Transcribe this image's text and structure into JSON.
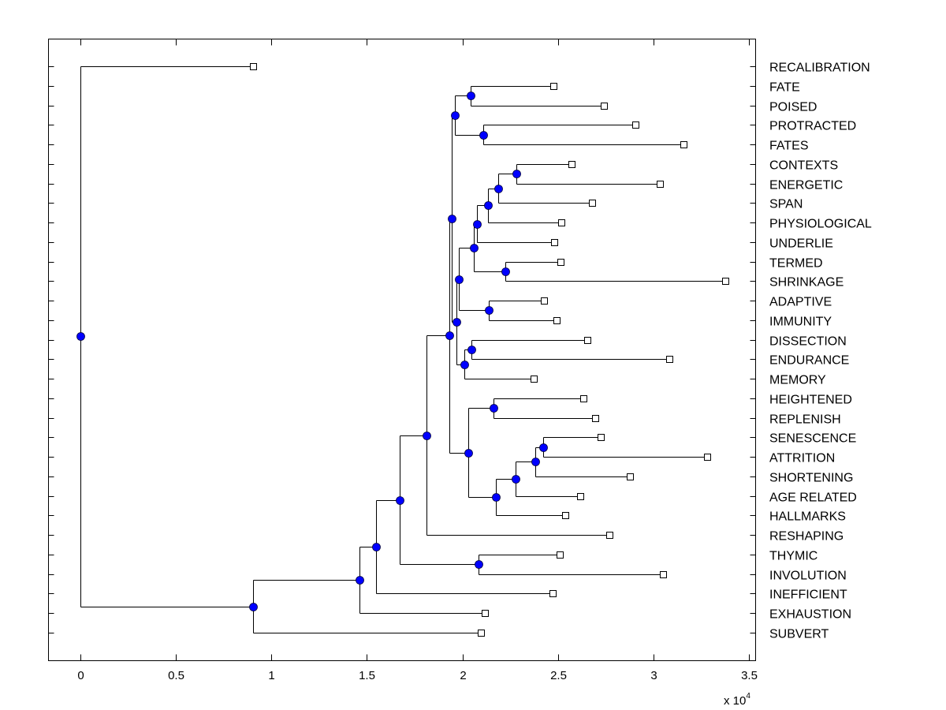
{
  "chart_data": {
    "type": "dendrogram",
    "title": "",
    "xlabel": "",
    "x_multiplier": "x 10",
    "x_multiplier_exponent": "4",
    "xlim": [
      -0.17,
      3.55
    ],
    "xticks": [
      0,
      0.5,
      1,
      1.5,
      2,
      2.5,
      3,
      3.5
    ],
    "xtick_labels": [
      "0",
      "0.5",
      "1",
      "1.5",
      "2",
      "2.5",
      "3",
      "3.5"
    ],
    "orientation": "leaves-right",
    "colors": {
      "node": "#0000ff",
      "line": "#000000",
      "leaf_marker": "#ffffff"
    },
    "leaves": [
      "RECALIBRATION",
      "FATE",
      "POISED",
      "PROTRACTED",
      "FATES",
      "CONTEXTS",
      "ENERGETIC",
      "SPAN",
      "PHYSIOLOGICAL",
      "UNDERLIE",
      "TERMED",
      "SHRINKAGE",
      "ADAPTIVE",
      "IMMUNITY",
      "DISSECTION",
      "ENDURANCE",
      "MEMORY",
      "HEIGHTENED",
      "REPLENISH",
      "SENESCENCE",
      "ATTRITION",
      "SHORTENING",
      "AGE RELATED",
      "HALLMARKS",
      "RESHAPING",
      "THYMIC",
      "INVOLUTION",
      "INEFFICIENT",
      "EXHAUSTION",
      "SUBVERT"
    ],
    "tree": {
      "h": 0,
      "c": [
        {
          "leaf": "RECALIBRATION",
          "h": 0.903
        },
        {
          "h": 0.903,
          "c": [
            {
              "h": 1.46,
              "c": [
                {
                  "h": 1.547,
                  "c": [
                    {
                      "h": 1.671,
                      "c": [
                        {
                          "h": 1.811,
                          "c": [
                            {
                              "h": 1.931,
                              "c": [
                                {
                                  "h": 1.943,
                                  "c": [
                                    {
                                      "h": 1.96,
                                      "c": [
                                        {
                                          "h": 2.042,
                                          "c": [
                                            {
                                              "leaf": "FATE",
                                              "h": 2.475
                                            },
                                            {
                                              "leaf": "POISED",
                                              "h": 2.739
                                            }
                                          ]
                                        },
                                        {
                                          "h": 2.108,
                                          "c": [
                                            {
                                              "leaf": "PROTRACTED",
                                              "h": 2.904
                                            },
                                            {
                                              "leaf": "FATES",
                                              "h": 3.156
                                            }
                                          ]
                                        }
                                      ]
                                    },
                                    {
                                      "h": 1.968,
                                      "c": [
                                        {
                                          "h": 1.98,
                                          "c": [
                                            {
                                              "h": 2.059,
                                              "c": [
                                                {
                                                  "h": 2.075,
                                                  "c": [
                                                    {
                                                      "h": 2.133,
                                                      "c": [
                                                        {
                                                          "h": 2.186,
                                                          "c": [
                                                            {
                                                              "h": 2.281,
                                                              "c": [
                                                                {
                                                                  "leaf": "CONTEXTS",
                                                                  "h": 2.57
                                                                },
                                                                {
                                                                  "leaf": "ENERGETIC",
                                                                  "h": 3.032
                                                                }
                                                              ]
                                                            },
                                                            {
                                                              "leaf": "SPAN",
                                                              "h": 2.677
                                                            }
                                                          ]
                                                        },
                                                        {
                                                          "leaf": "PHYSIOLOGICAL",
                                                          "h": 2.517
                                                        }
                                                      ]
                                                    },
                                                    {
                                                      "leaf": "UNDERLIE",
                                                      "h": 2.479
                                                    }
                                                  ]
                                                },
                                                {
                                                  "h": 2.224,
                                                  "c": [
                                                    {
                                                      "leaf": "TERMED",
                                                      "h": 2.512
                                                    },
                                                    {
                                                      "leaf": "SHRINKAGE",
                                                      "h": 3.375
                                                    }
                                                  ]
                                                }
                                              ]
                                            },
                                            {
                                              "h": 2.137,
                                              "c": [
                                                {
                                                  "leaf": "ADAPTIVE",
                                                  "h": 2.426
                                                },
                                                {
                                                  "leaf": "IMMUNITY",
                                                  "h": 2.492
                                                }
                                              ]
                                            }
                                          ]
                                        },
                                        {
                                          "h": 2.01,
                                          "c": [
                                            {
                                              "h": 2.046,
                                              "c": [
                                                {
                                                  "leaf": "DISSECTION",
                                                  "h": 2.653
                                                },
                                                {
                                                  "leaf": "ENDURANCE",
                                                  "h": 3.082
                                                }
                                              ]
                                            },
                                            {
                                              "leaf": "MEMORY",
                                              "h": 2.372
                                            }
                                          ]
                                        }
                                      ]
                                    }
                                  ]
                                },
                                {
                                  "h": 2.03,
                                  "c": [
                                    {
                                      "h": 2.162,
                                      "c": [
                                        {
                                          "leaf": "HEIGHTENED",
                                          "h": 2.632
                                        },
                                        {
                                          "leaf": "REPLENISH",
                                          "h": 2.694
                                        }
                                      ]
                                    },
                                    {
                                      "h": 2.174,
                                      "c": [
                                        {
                                          "h": 2.277,
                                          "c": [
                                            {
                                              "h": 2.38,
                                              "c": [
                                                {
                                                  "h": 2.422,
                                                  "c": [
                                                    {
                                                      "leaf": "SENESCENCE",
                                                      "h": 2.723
                                                    },
                                                    {
                                                      "leaf": "ATTRITION",
                                                      "h": 3.28
                                                    }
                                                  ]
                                                },
                                                {
                                                  "leaf": "SHORTENING",
                                                  "h": 2.875
                                                }
                                              ]
                                            },
                                            {
                                              "leaf": "AGE RELATED",
                                              "h": 2.616
                                            }
                                          ]
                                        },
                                        {
                                          "leaf": "HALLMARKS",
                                          "h": 2.537
                                        }
                                      ]
                                    }
                                  ]
                                }
                              ]
                            },
                            {
                              "leaf": "RESHAPING",
                              "h": 2.768
                            }
                          ]
                        },
                        {
                          "h": 2.083,
                          "c": [
                            {
                              "leaf": "THYMIC",
                              "h": 2.508
                            },
                            {
                              "leaf": "INVOLUTION",
                              "h": 3.049
                            }
                          ]
                        }
                      ]
                    },
                    {
                      "leaf": "INEFFICIENT",
                      "h": 2.471
                    }
                  ]
                },
                {
                  "leaf": "EXHAUSTION",
                  "h": 2.116
                }
              ]
            },
            {
              "leaf": "SUBVERT",
              "h": 2.096
            }
          ]
        }
      ]
    }
  }
}
